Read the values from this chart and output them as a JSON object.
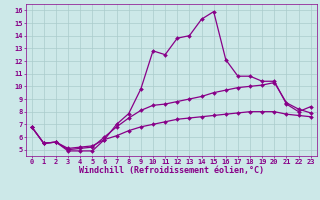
{
  "xlabel": "Windchill (Refroidissement éolien,°C)",
  "bg_color": "#cce8e8",
  "line_color": "#880088",
  "grid_color": "#aacccc",
  "xlim": [
    -0.5,
    23.5
  ],
  "ylim": [
    4.5,
    16.5
  ],
  "xticks": [
    0,
    1,
    2,
    3,
    4,
    5,
    6,
    7,
    8,
    9,
    10,
    11,
    12,
    13,
    14,
    15,
    16,
    17,
    18,
    19,
    20,
    21,
    22,
    23
  ],
  "yticks": [
    5,
    6,
    7,
    8,
    9,
    10,
    11,
    12,
    13,
    14,
    15,
    16
  ],
  "series": [
    {
      "x": [
        0,
        1,
        2,
        3,
        4,
        5,
        6,
        7,
        8,
        9,
        10,
        11,
        12,
        13,
        14,
        15,
        16,
        17,
        18,
        19,
        20,
        21,
        22,
        23
      ],
      "y": [
        6.8,
        5.5,
        5.6,
        4.9,
        4.9,
        4.9,
        5.8,
        7.0,
        7.85,
        9.8,
        12.8,
        12.5,
        13.8,
        14.0,
        15.3,
        15.9,
        12.1,
        10.8,
        10.8,
        10.4,
        10.4,
        8.6,
        8.0,
        8.4
      ]
    },
    {
      "x": [
        0,
        1,
        2,
        3,
        4,
        5,
        6,
        7,
        8,
        9,
        10,
        11,
        12,
        13,
        14,
        15,
        16,
        17,
        18,
        19,
        20,
        21,
        22,
        23
      ],
      "y": [
        6.8,
        5.5,
        5.6,
        5.0,
        5.1,
        5.2,
        6.0,
        6.8,
        7.5,
        8.1,
        8.5,
        8.6,
        8.8,
        9.0,
        9.2,
        9.5,
        9.7,
        9.9,
        10.0,
        10.1,
        10.3,
        8.7,
        8.2,
        7.9
      ]
    },
    {
      "x": [
        0,
        1,
        2,
        3,
        4,
        5,
        6,
        7,
        8,
        9,
        10,
        11,
        12,
        13,
        14,
        15,
        16,
        17,
        18,
        19,
        20,
        21,
        22,
        23
      ],
      "y": [
        6.8,
        5.5,
        5.6,
        5.1,
        5.2,
        5.3,
        5.8,
        6.1,
        6.5,
        6.8,
        7.0,
        7.2,
        7.4,
        7.5,
        7.6,
        7.7,
        7.8,
        7.9,
        8.0,
        8.0,
        8.0,
        7.8,
        7.7,
        7.6
      ]
    }
  ],
  "marker": "D",
  "marker_size": 2.0,
  "line_width": 0.9,
  "font_size_axis": 6.0,
  "font_size_tick": 5.0
}
